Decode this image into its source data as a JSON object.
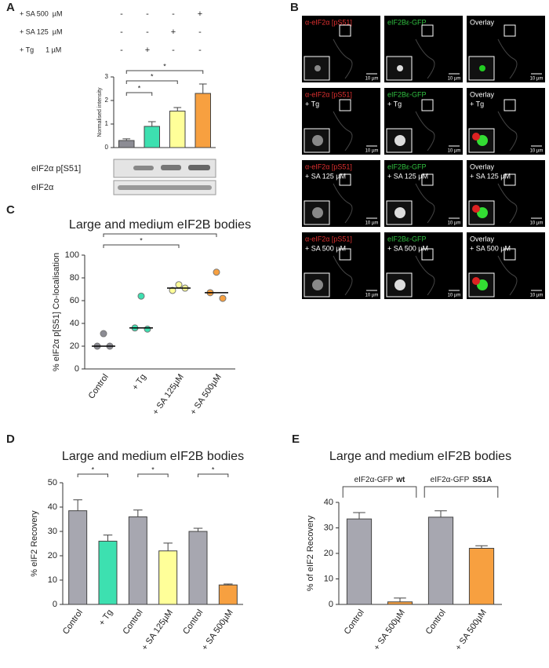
{
  "panel_labels": [
    "A",
    "B",
    "C",
    "D",
    "E"
  ],
  "treatments": {
    "rows": [
      {
        "label": "+ SA 500  µM",
        "signs": [
          "-",
          "-",
          "-",
          "+"
        ]
      },
      {
        "label": "+ SA 125  µM",
        "signs": [
          "-",
          "-",
          "+",
          "-"
        ]
      },
      {
        "label": "+ Tg      1 µM",
        "signs": [
          "-",
          "+",
          "-",
          "-"
        ]
      }
    ]
  },
  "blot": {
    "labels": [
      "eIF2α p[S51]",
      "eIF2α"
    ]
  },
  "microscopy": {
    "channels": [
      "α-eIF2α [pS51]",
      "eIF2Bε-GFP",
      "Overlay"
    ],
    "treatments": [
      "+ Tg",
      "+ SA 125 µM",
      "+ SA 500 µM"
    ],
    "scale_bar": "10 µm"
  },
  "chart_data": [
    {
      "type": "bar",
      "ylabel": "Normalised intensity",
      "categories": [
        null,
        null,
        null,
        null
      ],
      "values": [
        0.3,
        0.9,
        1.55,
        2.3
      ],
      "errors": [
        0.07,
        0.2,
        0.15,
        0.4
      ],
      "colors": [
        "#8c8c94",
        "#3de0b0",
        "#ffff99",
        "#f7a040"
      ],
      "ylim": [
        0,
        3
      ],
      "yticks": [
        0,
        1,
        2,
        3
      ],
      "annotations": [
        "*",
        "*",
        "*"
      ]
    },
    {
      "type": "dot",
      "title": "Large and medium eIF2B bodies",
      "ylabel": "% eIF2α p[S51] Co-localisation",
      "categories": [
        "Control",
        "+ Tg",
        "+ SA 125µM",
        "+ SA 500µM"
      ],
      "points": [
        [
          31,
          20,
          20
        ],
        [
          64,
          36,
          35
        ],
        [
          74,
          69,
          71
        ],
        [
          85,
          67,
          62
        ]
      ],
      "medians": [
        20,
        36,
        71,
        67
      ],
      "colors": [
        "#8c8c94",
        "#3de0b0",
        "#ffff99",
        "#f7a040"
      ],
      "ylim": [
        0,
        100
      ],
      "yticks": [
        0,
        20,
        40,
        60,
        80,
        100
      ],
      "annotations": [
        "*",
        "*"
      ]
    },
    {
      "type": "bar",
      "title": "Large and medium eIF2B bodies",
      "ylabel": "% eIF2 Recovery",
      "categories": [
        "Control",
        "+ Tg",
        "Control",
        "+ SA 125µM",
        "Control",
        "+ SA 500µM"
      ],
      "values": [
        38.5,
        26,
        36,
        22,
        30,
        8
      ],
      "errors": [
        4.5,
        2.5,
        2.8,
        3.2,
        1.3,
        0.4
      ],
      "colors": [
        "#a7a7b0",
        "#3de0b0",
        "#a7a7b0",
        "#ffff99",
        "#a7a7b0",
        "#f7a040"
      ],
      "ylim": [
        0,
        50
      ],
      "yticks": [
        0,
        10,
        20,
        30,
        40,
        50
      ],
      "annotations": [
        "*",
        "*",
        "*"
      ]
    },
    {
      "type": "bar",
      "title": "Large and medium eIF2B bodies",
      "ylabel": "% of eIF2 Recovery",
      "categories": [
        "Control",
        "+ SA 500µM",
        "Control",
        "+ SA 500µM"
      ],
      "values": [
        33.5,
        1,
        34.2,
        22
      ],
      "errors": [
        2.5,
        1.5,
        2.5,
        1
      ],
      "colors": [
        "#a7a7b0",
        "#f7a040",
        "#a7a7b0",
        "#f7a040"
      ],
      "ylim": [
        0,
        40
      ],
      "yticks": [
        0,
        10,
        20,
        30,
        40
      ],
      "groups": [
        {
          "name": "eIF2α-GFP",
          "emph": "wt"
        },
        {
          "name": "eIF2α-GFP",
          "emph": "S51A"
        }
      ]
    }
  ]
}
